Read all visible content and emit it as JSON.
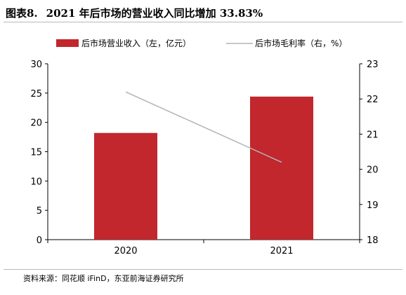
{
  "figure": {
    "number": "图表8.",
    "title": "2021 年后市场的营业收入同比增加 33.83%"
  },
  "source_note": "资料来源：同花顺 iFinD，东亚前海证券研究所",
  "colors": {
    "bar": "#c1272d",
    "line": "#b3b3b3",
    "axis": "#000000"
  },
  "chart_data": {
    "type": "bar",
    "categories": [
      "2020",
      "2021"
    ],
    "series": [
      {
        "name": "后市场营业收入（左，亿元）",
        "type": "bar",
        "axis": "left",
        "values": [
          18.2,
          24.4
        ]
      },
      {
        "name": "后市场毛利率（右，%）",
        "type": "line",
        "axis": "right",
        "values": [
          22.2,
          20.2
        ]
      }
    ],
    "y_left": {
      "ylim": [
        0,
        30
      ],
      "ticks": [
        "0",
        "5",
        "10",
        "15",
        "20",
        "25",
        "30"
      ]
    },
    "y_right": {
      "ylim": [
        18,
        23
      ],
      "ticks": [
        "18",
        "19",
        "20",
        "21",
        "22",
        "23"
      ]
    },
    "grid": false,
    "legend": "top"
  }
}
